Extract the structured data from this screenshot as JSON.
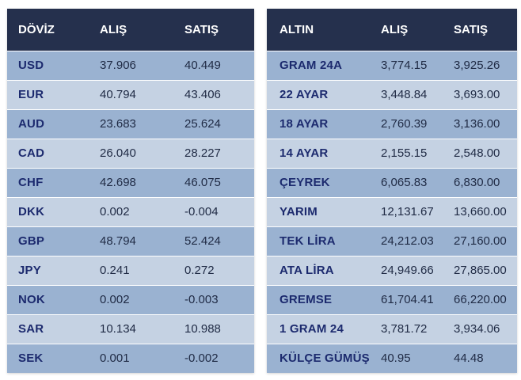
{
  "currency_table": {
    "headers": {
      "name": "DÖVİZ",
      "buy": "ALIŞ",
      "sell": "SATIŞ"
    },
    "rows": [
      {
        "name": "USD",
        "buy": "37.906",
        "sell": "40.449"
      },
      {
        "name": "EUR",
        "buy": "40.794",
        "sell": "43.406"
      },
      {
        "name": "AUD",
        "buy": "23.683",
        "sell": "25.624"
      },
      {
        "name": "CAD",
        "buy": "26.040",
        "sell": "28.227"
      },
      {
        "name": "CHF",
        "buy": "42.698",
        "sell": "46.075"
      },
      {
        "name": "DKK",
        "buy": "0.002",
        "sell": "-0.004"
      },
      {
        "name": "GBP",
        "buy": "48.794",
        "sell": "52.424"
      },
      {
        "name": "JPY",
        "buy": "0.241",
        "sell": "0.272"
      },
      {
        "name": "NOK",
        "buy": "0.002",
        "sell": "-0.003"
      },
      {
        "name": "SAR",
        "buy": "10.134",
        "sell": "10.988"
      },
      {
        "name": "SEK",
        "buy": "0.001",
        "sell": "-0.002"
      }
    ]
  },
  "gold_table": {
    "headers": {
      "name": "ALTIN",
      "buy": "ALIŞ",
      "sell": "SATIŞ"
    },
    "rows": [
      {
        "name": "GRAM 24A",
        "buy": "3,774.15",
        "sell": "3,925.26"
      },
      {
        "name": "22 AYAR",
        "buy": "3,448.84",
        "sell": "3,693.00"
      },
      {
        "name": "18 AYAR",
        "buy": "2,760.39",
        "sell": "3,136.00"
      },
      {
        "name": "14 AYAR",
        "buy": "2,155.15",
        "sell": "2,548.00"
      },
      {
        "name": "ÇEYREK",
        "buy": "6,065.83",
        "sell": "6,830.00"
      },
      {
        "name": "YARIM",
        "buy": "12,131.67",
        "sell": "13,660.00"
      },
      {
        "name": "TEK LİRA",
        "buy": "24,212.03",
        "sell": "27,160.00"
      },
      {
        "name": "ATA LİRA",
        "buy": "24,949.66",
        "sell": "27,865.00"
      },
      {
        "name": "GREMSE",
        "buy": "61,704.41",
        "sell": "66,220.00"
      },
      {
        "name": "1 GRAM 24",
        "buy": "3,781.72",
        "sell": "3,934.06"
      },
      {
        "name": "KÜLÇE GÜMÜŞ",
        "buy": "40.95",
        "sell": "44.48"
      }
    ]
  },
  "colors": {
    "header_bg": "#25304d",
    "row_odd": "#9ab2d1",
    "row_even": "#c5d2e3",
    "name_text": "#1c2a6e",
    "value_text": "#1f2a44"
  }
}
